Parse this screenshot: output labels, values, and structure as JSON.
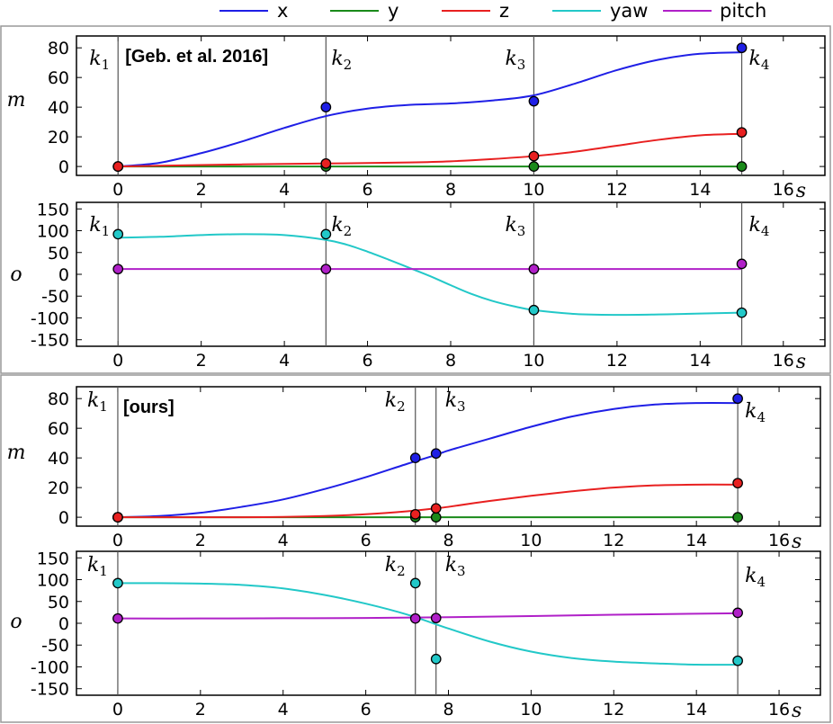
{
  "legend": [
    {
      "name": "x",
      "color": "#1f1fe6"
    },
    {
      "name": "y",
      "color": "#1a8a1a"
    },
    {
      "name": "z",
      "color": "#e82020"
    },
    {
      "name": "yaw",
      "color": "#22c8c8"
    },
    {
      "name": "pitch",
      "color": "#b020c8"
    }
  ],
  "chart_data": [
    {
      "type": "line",
      "group": "Geb. et al. 2016",
      "badge": "[Geb. et al. 2016]",
      "ylabel": "m",
      "xunit": "s",
      "xlim": [
        -1,
        17
      ],
      "ylim": [
        -6,
        88
      ],
      "xticks": [
        0,
        2,
        4,
        6,
        8,
        10,
        12,
        14,
        16
      ],
      "yticks": [
        0,
        20,
        40,
        60,
        80
      ],
      "keyframes": [
        {
          "label": "k",
          "sub": "1",
          "x": 0
        },
        {
          "label": "k",
          "sub": "2",
          "x": 5
        },
        {
          "label": "k",
          "sub": "3",
          "x": 10
        },
        {
          "label": "k",
          "sub": "4",
          "x": 15
        }
      ],
      "series": [
        {
          "name": "x",
          "color": "#1f1fe6",
          "curve_x": [
            0,
            1,
            2,
            3,
            4,
            5,
            6,
            7,
            8,
            9,
            10,
            11,
            12,
            13,
            14,
            15
          ],
          "curve_y": [
            0,
            2.5,
            9,
            17,
            26,
            34,
            39,
            41.5,
            42.5,
            44.5,
            48,
            56,
            65,
            72,
            76,
            77
          ],
          "points_x": [
            0,
            5,
            10,
            15
          ],
          "points_y": [
            0,
            40,
            44,
            80
          ]
        },
        {
          "name": "y",
          "color": "#1a8a1a",
          "curve_x": [
            0,
            15
          ],
          "curve_y": [
            0,
            0
          ],
          "points_x": [
            0,
            5,
            10,
            15
          ],
          "points_y": [
            0,
            0,
            0,
            0
          ]
        },
        {
          "name": "z",
          "color": "#e82020",
          "curve_x": [
            0,
            1,
            2,
            3,
            4,
            5,
            6,
            7,
            8,
            9,
            10,
            11,
            12,
            13,
            14,
            15
          ],
          "curve_y": [
            0,
            0.5,
            1,
            1.4,
            1.7,
            2,
            2.3,
            2.7,
            3.5,
            5,
            7,
            10,
            14,
            18,
            21,
            22
          ],
          "points_x": [
            0,
            5,
            10,
            15
          ],
          "points_y": [
            0,
            2,
            7,
            23
          ]
        }
      ]
    },
    {
      "type": "line",
      "group": "Geb. et al. 2016",
      "ylabel": "o",
      "xunit": "s",
      "xlim": [
        -1,
        17
      ],
      "ylim": [
        -165,
        165
      ],
      "xticks": [
        0,
        2,
        4,
        6,
        8,
        10,
        12,
        14,
        16
      ],
      "yticks": [
        150,
        100,
        50,
        0,
        -50,
        -100,
        -150
      ],
      "keyframes": [
        {
          "label": "k",
          "sub": "1",
          "x": 0
        },
        {
          "label": "k",
          "sub": "2",
          "x": 5
        },
        {
          "label": "k",
          "sub": "3",
          "x": 10
        },
        {
          "label": "k",
          "sub": "4",
          "x": 15
        }
      ],
      "series": [
        {
          "name": "yaw",
          "color": "#22c8c8",
          "curve_x": [
            0,
            1,
            2,
            3,
            4,
            5,
            5.5,
            6,
            6.5,
            7,
            7.5,
            8,
            8.5,
            9,
            9.5,
            10,
            11,
            12,
            13,
            14,
            15
          ],
          "curve_y": [
            84,
            86,
            90,
            92,
            90,
            79,
            68,
            52,
            34,
            15,
            -4,
            -25,
            -45,
            -61,
            -73,
            -82,
            -91,
            -93,
            -92,
            -90,
            -88
          ],
          "points_x": [
            0,
            5,
            10,
            15
          ],
          "points_y": [
            92,
            92,
            -82,
            -88
          ]
        },
        {
          "name": "pitch",
          "color": "#b020c8",
          "curve_x": [
            0,
            15
          ],
          "curve_y": [
            12,
            12
          ],
          "points_x": [
            0,
            5,
            10,
            15
          ],
          "points_y": [
            12,
            12,
            12,
            24
          ]
        }
      ]
    },
    {
      "type": "line",
      "group": "ours",
      "badge": "[ours]",
      "ylabel": "m",
      "xunit": "s",
      "xlim": [
        -1,
        17
      ],
      "ylim": [
        -6,
        88
      ],
      "xticks": [
        0,
        2,
        4,
        6,
        8,
        10,
        12,
        14,
        16
      ],
      "yticks": [
        0,
        20,
        40,
        60,
        80
      ],
      "keyframes": [
        {
          "label": "k",
          "sub": "1",
          "x": 0
        },
        {
          "label": "k",
          "sub": "2",
          "x": 7.2
        },
        {
          "label": "k",
          "sub": "3",
          "x": 7.7
        },
        {
          "label": "k",
          "sub": "4",
          "x": 15
        }
      ],
      "series": [
        {
          "name": "x",
          "color": "#1f1fe6",
          "curve_x": [
            0,
            1,
            2,
            3,
            4,
            5,
            6,
            7,
            7.7,
            8,
            9,
            10,
            11,
            12,
            13,
            14,
            15
          ],
          "curve_y": [
            0,
            0.8,
            3,
            7,
            12,
            19,
            27,
            36,
            42,
            45,
            53,
            61,
            68,
            73,
            76,
            77,
            77
          ],
          "points_x": [
            0,
            7.2,
            7.7,
            15
          ],
          "points_y": [
            0,
            40,
            43,
            80
          ]
        },
        {
          "name": "y",
          "color": "#1a8a1a",
          "curve_x": [
            0,
            15
          ],
          "curve_y": [
            0,
            0
          ],
          "points_x": [
            0,
            7.2,
            7.7,
            15
          ],
          "points_y": [
            0,
            0,
            0,
            0
          ]
        },
        {
          "name": "z",
          "color": "#e82020",
          "curve_x": [
            0,
            1,
            2,
            3,
            4,
            5,
            6,
            7,
            7.7,
            8,
            9,
            10,
            11,
            12,
            13,
            14,
            15
          ],
          "curve_y": [
            0,
            0,
            0,
            0,
            0.2,
            0.8,
            2,
            4,
            6,
            7,
            11,
            14.5,
            17.5,
            20,
            21.5,
            22,
            22
          ],
          "points_x": [
            0,
            7.2,
            7.7,
            15
          ],
          "points_y": [
            0,
            2,
            6,
            23
          ]
        }
      ]
    },
    {
      "type": "line",
      "group": "ours",
      "ylabel": "o",
      "xunit": "s",
      "xlim": [
        -1,
        17
      ],
      "ylim": [
        -165,
        165
      ],
      "xticks": [
        0,
        2,
        4,
        6,
        8,
        10,
        12,
        14,
        16
      ],
      "yticks": [
        150,
        100,
        50,
        0,
        -50,
        -100,
        -150
      ],
      "keyframes": [
        {
          "label": "k",
          "sub": "1",
          "x": 0
        },
        {
          "label": "k",
          "sub": "2",
          "x": 7.2
        },
        {
          "label": "k",
          "sub": "3",
          "x": 7.7
        },
        {
          "label": "k",
          "sub": "4",
          "x": 15
        }
      ],
      "series": [
        {
          "name": "yaw",
          "color": "#22c8c8",
          "curve_x": [
            0,
            1,
            2,
            3,
            4,
            5,
            6,
            7,
            8,
            9,
            10,
            11,
            12,
            13,
            14,
            15
          ],
          "curve_y": [
            92,
            92,
            91,
            88,
            80,
            65,
            45,
            20,
            -12,
            -42,
            -65,
            -80,
            -88,
            -92,
            -95,
            -95
          ],
          "points_x": [
            0,
            7.2,
            7.7,
            15
          ],
          "points_y": [
            92,
            92,
            -82,
            -86
          ]
        },
        {
          "name": "pitch",
          "color": "#b020c8",
          "curve_x": [
            0,
            2,
            4,
            6,
            8,
            10,
            12,
            14,
            15
          ],
          "curve_y": [
            11,
            11,
            11.5,
            12,
            14,
            16.5,
            19.5,
            22,
            23
          ],
          "points_x": [
            0,
            7.2,
            7.7,
            15
          ],
          "points_y": [
            11,
            11,
            12,
            24
          ]
        }
      ]
    }
  ]
}
